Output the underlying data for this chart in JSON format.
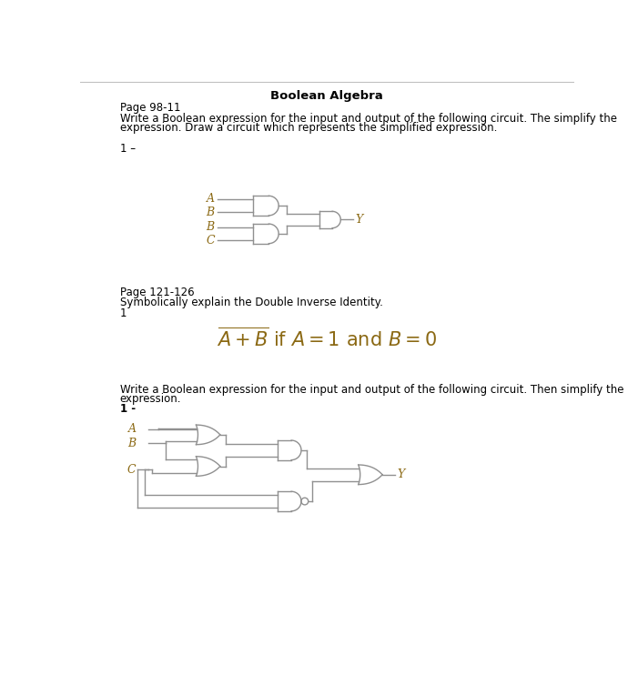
{
  "title": "Boolean Algebra",
  "page1_label": "Page 98-11",
  "page1_text1": "Write a Boolean expression for the input and output of the following circuit. The simplify the",
  "page1_text2": "expression. Draw a circuit which represents the simplified expression.",
  "label_1dash": "1 –",
  "page2_label": "Page 121-126",
  "page2_text": "Symbolically explain the Double Inverse Identity.",
  "page2_num": "1",
  "page3_text1": "Write a Boolean expression for the input and output of the following circuit. Then simplify the",
  "page3_text2": "expression.",
  "label_1dash2": "1 -",
  "text_color": "#000000",
  "italic_color": "#8B6914",
  "gate_color": "#909090",
  "bg_color": "#ffffff",
  "border_color": "#c0c0c0",
  "formula_color": "#8B6914",
  "black": "#000000"
}
